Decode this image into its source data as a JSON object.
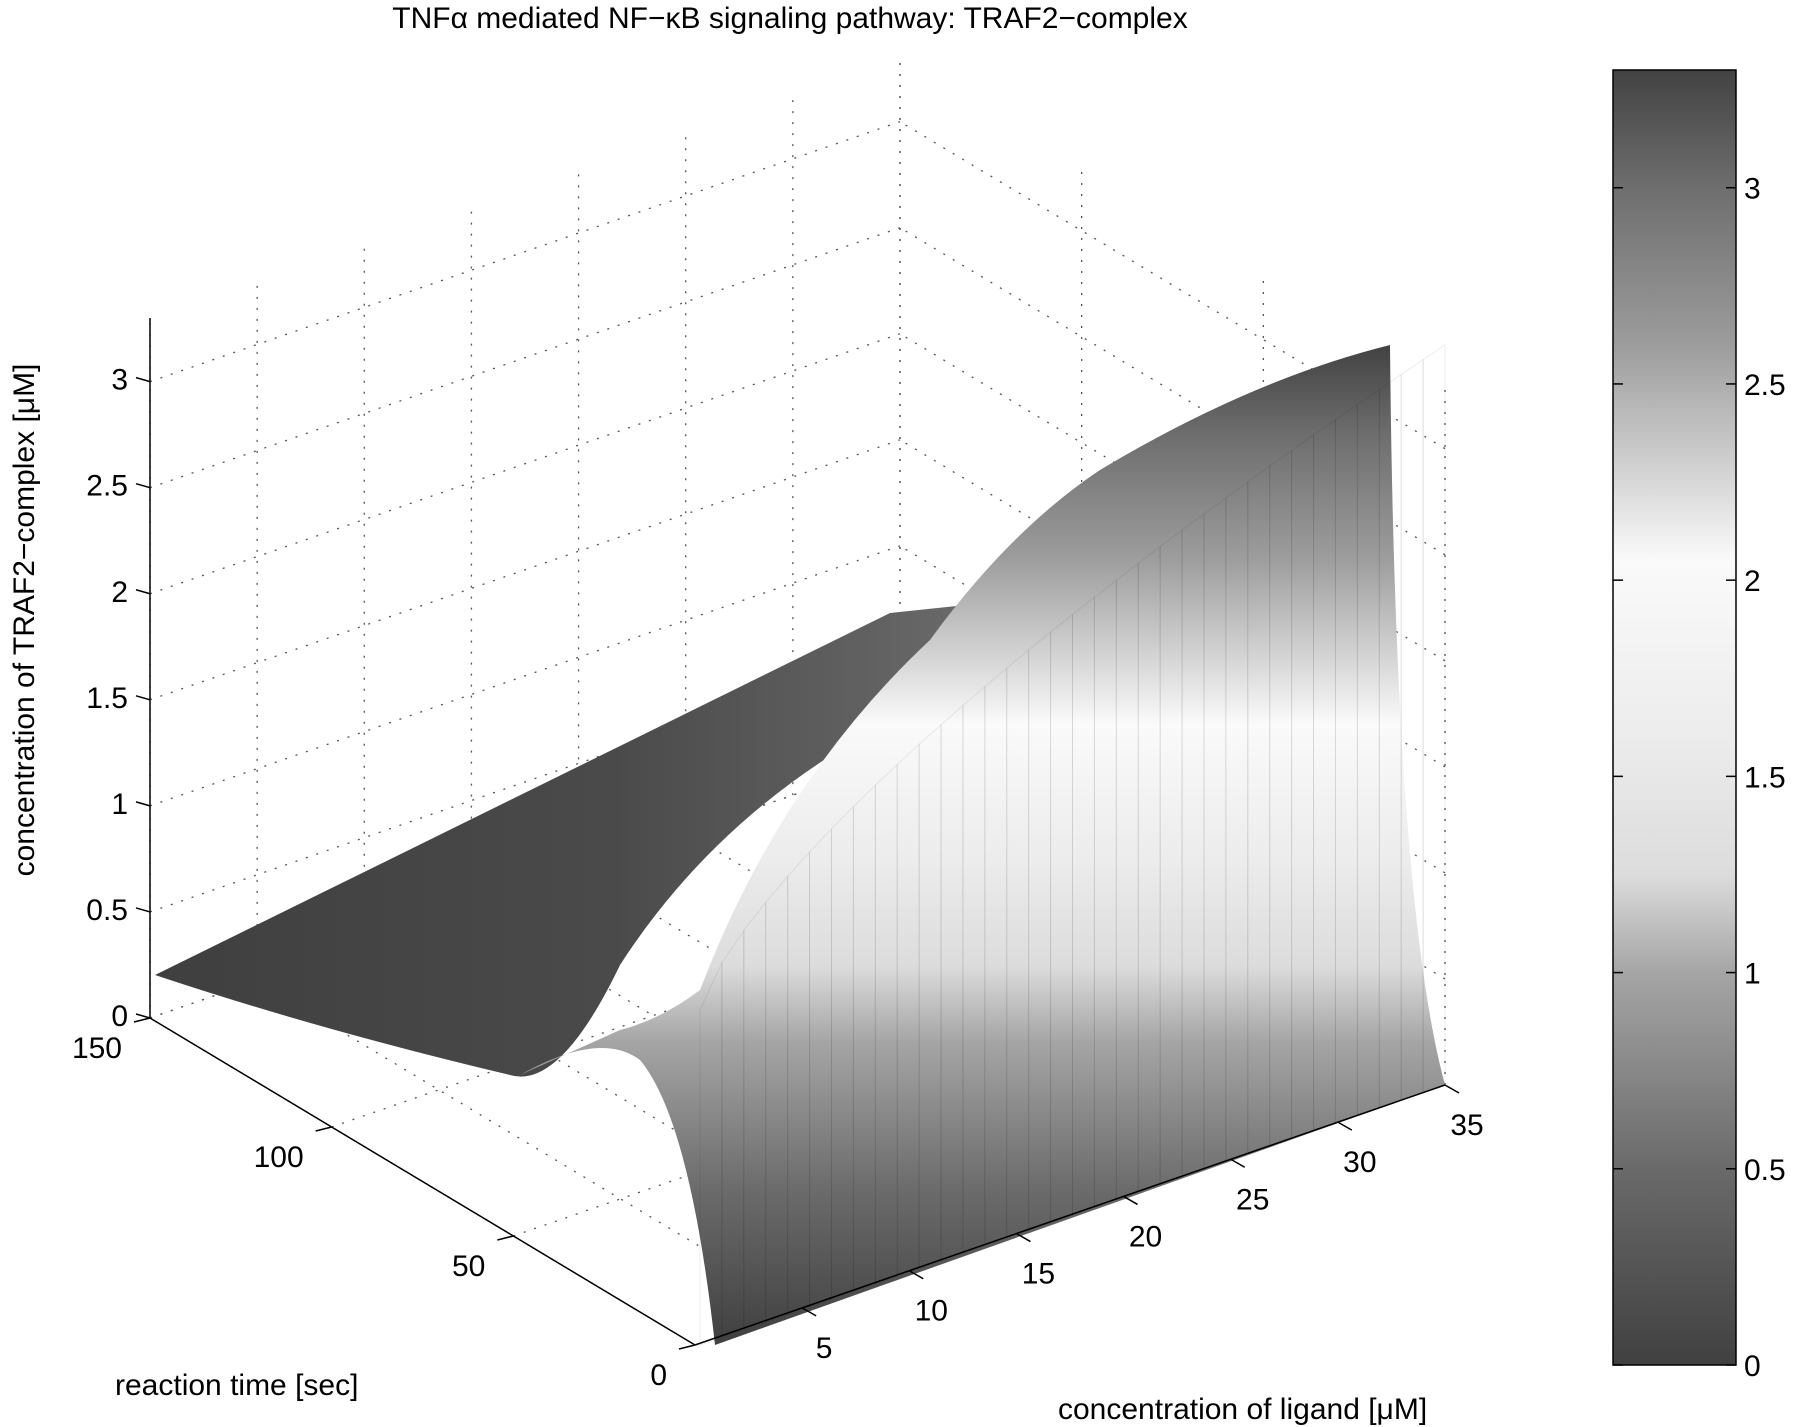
{
  "chart_data": {
    "type": "surface",
    "title": "TNFα mediated NF−κB signaling pathway: TRAF2−complex",
    "xlabel": "concentration of ligand [μM]",
    "ylabel": "reaction time [sec]",
    "zlabel": "concentration of TRAF2−complex [μM]",
    "xlim": [
      0,
      35
    ],
    "ylim": [
      0,
      150
    ],
    "zlim": [
      0,
      3.3
    ],
    "x_ticks": [
      "5",
      "10",
      "15",
      "20",
      "25",
      "30",
      "35"
    ],
    "y_ticks": [
      "0",
      "50",
      "100",
      "150"
    ],
    "z_ticks": [
      "0",
      "0.5",
      "1",
      "1.5",
      "2",
      "2.5",
      "3"
    ],
    "colorbar": {
      "range": [
        0,
        3.3
      ],
      "ticks": [
        "0",
        "0.5",
        "1",
        "1.5",
        "2",
        "2.5",
        "3"
      ],
      "colormap": [
        {
          "value": 0.0,
          "color": "#404040"
        },
        {
          "value": 0.5,
          "color": "#6a6a6a"
        },
        {
          "value": 1.0,
          "color": "#a5a5a5"
        },
        {
          "value": 1.25,
          "color": "#dcdcdc"
        },
        {
          "value": 1.6,
          "color": "#ececec"
        },
        {
          "value": 2.05,
          "color": "#fafafa"
        },
        {
          "value": 2.3,
          "color": "#cfcfcf"
        },
        {
          "value": 2.6,
          "color": "#9c9c9c"
        },
        {
          "value": 3.0,
          "color": "#6e6e6e"
        },
        {
          "value": 3.3,
          "color": "#424242"
        }
      ]
    },
    "grid": true,
    "surface_description_values": {
      "initial_value": 0.2,
      "final_value_at_max_ligand": 3.1
    }
  }
}
